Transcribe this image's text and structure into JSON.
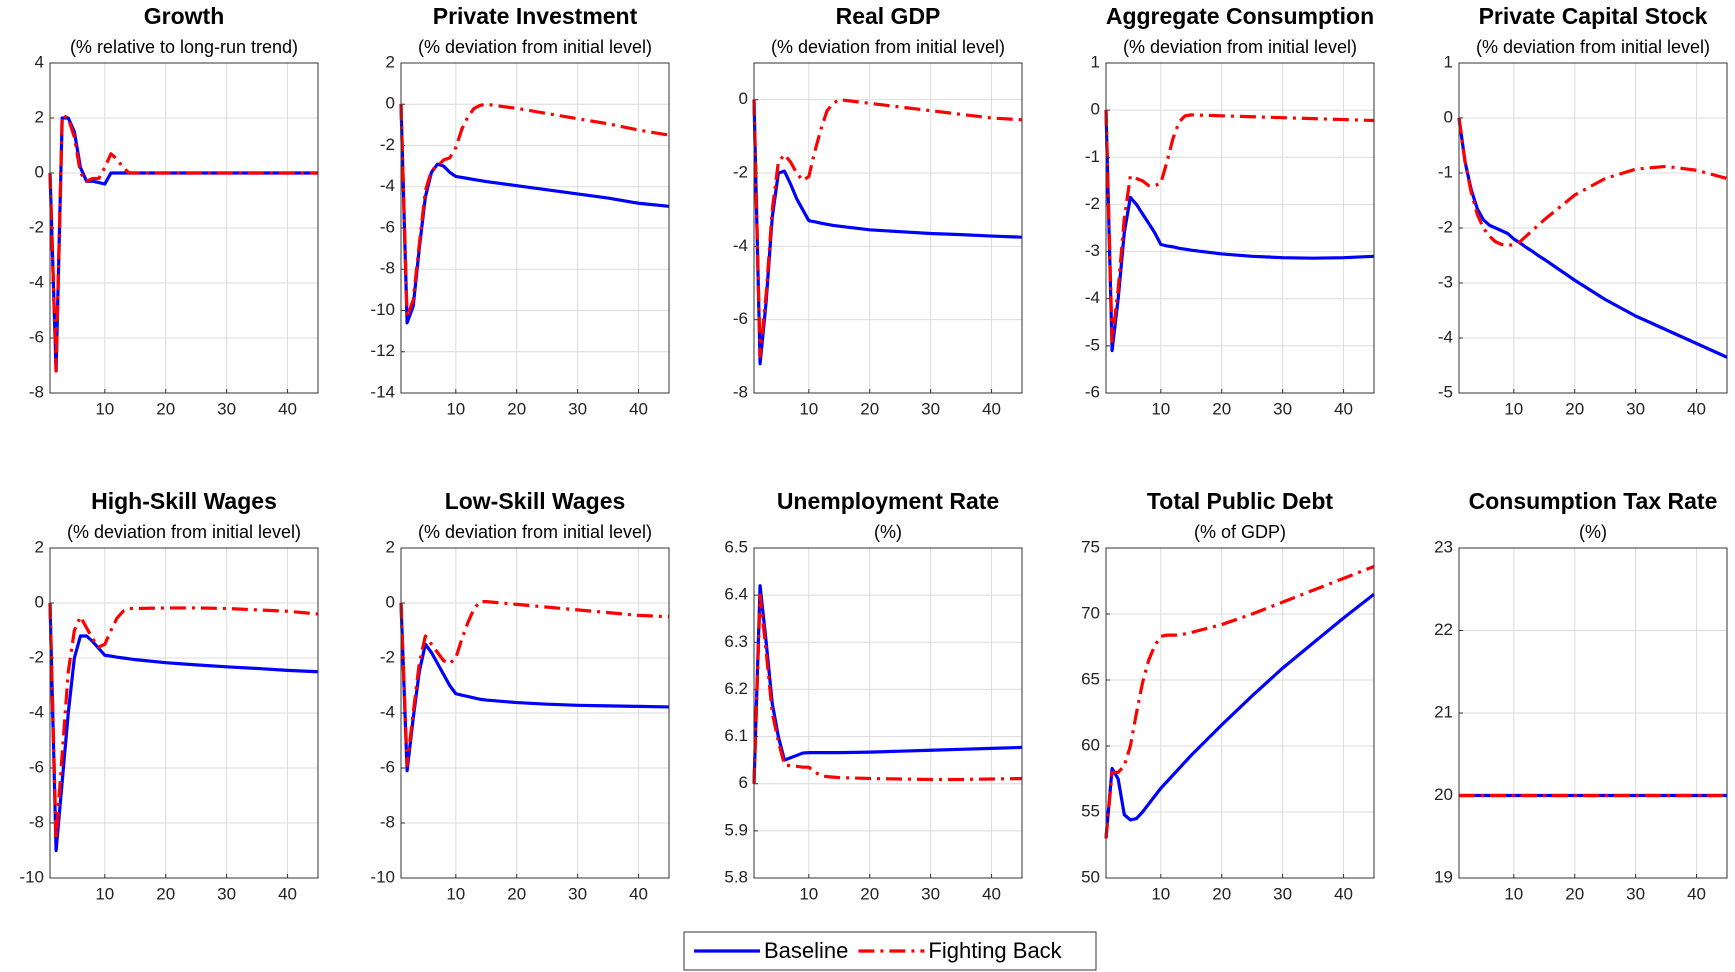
{
  "chart_data": [
    {
      "type": "line",
      "title": "Growth",
      "subtitle": "(% relative to long-run trend)",
      "x": [
        1,
        2,
        3,
        4,
        5,
        6,
        7,
        8,
        9,
        10,
        11,
        12,
        13,
        14,
        15,
        20,
        25,
        30,
        35,
        40,
        45
      ],
      "series": [
        {
          "name": "Baseline",
          "color": "#0000ff",
          "linestyle": "solid",
          "values": [
            0,
            -7.2,
            2.0,
            2.0,
            1.5,
            0.2,
            -0.3,
            -0.3,
            -0.35,
            -0.4,
            0,
            0,
            0,
            0,
            0,
            0,
            0,
            0,
            0,
            0,
            0
          ]
        },
        {
          "name": "Fighting Back",
          "color": "#ff0000",
          "linestyle": "dashdot",
          "values": [
            0,
            -7.2,
            2.1,
            2.0,
            1.3,
            0,
            -0.3,
            -0.2,
            -0.2,
            0.2,
            0.7,
            0.5,
            0.2,
            0,
            0,
            0,
            0,
            0,
            0,
            0,
            0
          ]
        }
      ],
      "xlim": [
        1,
        45
      ],
      "xticks": [
        10,
        20,
        30,
        40
      ],
      "ylim": [
        -8,
        4
      ],
      "yticks": [
        -8,
        -6,
        -4,
        -2,
        0,
        2,
        4
      ],
      "grid": true
    },
    {
      "type": "line",
      "title": "Private Investment",
      "subtitle": "(% deviation from initial level)",
      "x": [
        1,
        2,
        3,
        4,
        5,
        6,
        7,
        8,
        9,
        10,
        11,
        12,
        13,
        14,
        15,
        20,
        25,
        30,
        35,
        40,
        45
      ],
      "series": [
        {
          "name": "Baseline",
          "color": "#0000ff",
          "linestyle": "solid",
          "values": [
            0,
            -10.6,
            -9.8,
            -7,
            -4.5,
            -3.3,
            -2.9,
            -3.0,
            -3.3,
            -3.5,
            -3.55,
            -3.6,
            -3.65,
            -3.7,
            -3.75,
            -3.95,
            -4.15,
            -4.35,
            -4.55,
            -4.8,
            -4.95
          ]
        },
        {
          "name": "Fighting Back",
          "color": "#ff0000",
          "linestyle": "dashdot",
          "values": [
            0,
            -10.3,
            -9.5,
            -6.8,
            -4.2,
            -3.2,
            -3.0,
            -2.7,
            -2.6,
            -2.1,
            -1.2,
            -0.6,
            -0.2,
            -0.05,
            0,
            -0.2,
            -0.45,
            -0.7,
            -0.95,
            -1.25,
            -1.5
          ]
        }
      ],
      "xlim": [
        1,
        45
      ],
      "xticks": [
        10,
        20,
        30,
        40
      ],
      "ylim": [
        -14,
        2
      ],
      "yticks": [
        -14,
        -12,
        -10,
        -8,
        -6,
        -4,
        -2,
        0,
        2
      ],
      "grid": true
    },
    {
      "type": "line",
      "title": "Real GDP",
      "subtitle": "(% deviation from initial level)",
      "x": [
        1,
        2,
        3,
        4,
        5,
        6,
        7,
        8,
        9,
        10,
        11,
        12,
        13,
        14,
        15,
        20,
        25,
        30,
        35,
        40,
        45
      ],
      "series": [
        {
          "name": "Baseline",
          "color": "#0000ff",
          "linestyle": "solid",
          "values": [
            0,
            -7.2,
            -5.5,
            -3.2,
            -2.0,
            -1.95,
            -2.3,
            -2.7,
            -3.0,
            -3.3,
            -3.33,
            -3.37,
            -3.4,
            -3.43,
            -3.45,
            -3.55,
            -3.6,
            -3.65,
            -3.68,
            -3.72,
            -3.75
          ]
        },
        {
          "name": "Fighting Back",
          "color": "#ff0000",
          "linestyle": "dashdot",
          "values": [
            0,
            -7.0,
            -5.3,
            -3.0,
            -1.7,
            -1.5,
            -1.7,
            -2.0,
            -2.2,
            -2.1,
            -1.4,
            -0.8,
            -0.3,
            -0.1,
            0,
            -0.1,
            -0.2,
            -0.3,
            -0.4,
            -0.5,
            -0.55
          ]
        }
      ],
      "xlim": [
        1,
        45
      ],
      "xticks": [
        10,
        20,
        30,
        40
      ],
      "ylim": [
        -8,
        1
      ],
      "yticks": [
        -8,
        -6,
        -4,
        -2,
        0
      ],
      "grid": true
    },
    {
      "type": "line",
      "title": "Aggregate Consumption",
      "subtitle": "(% deviation from initial level)",
      "x": [
        1,
        2,
        3,
        4,
        5,
        6,
        7,
        8,
        9,
        10,
        11,
        12,
        13,
        14,
        15,
        20,
        25,
        30,
        35,
        40,
        45
      ],
      "series": [
        {
          "name": "Baseline",
          "color": "#0000ff",
          "linestyle": "solid",
          "values": [
            0,
            -5.1,
            -4.0,
            -2.6,
            -1.85,
            -2.0,
            -2.2,
            -2.4,
            -2.6,
            -2.85,
            -2.88,
            -2.9,
            -2.93,
            -2.95,
            -2.97,
            -3.05,
            -3.1,
            -3.13,
            -3.14,
            -3.13,
            -3.1
          ]
        },
        {
          "name": "Fighting Back",
          "color": "#ff0000",
          "linestyle": "dashdot",
          "values": [
            0,
            -4.9,
            -3.8,
            -2.3,
            -1.4,
            -1.45,
            -1.5,
            -1.6,
            -1.6,
            -1.55,
            -1.1,
            -0.6,
            -0.25,
            -0.12,
            -0.1,
            -0.12,
            -0.14,
            -0.16,
            -0.18,
            -0.2,
            -0.22
          ]
        }
      ],
      "xlim": [
        1,
        45
      ],
      "xticks": [
        10,
        20,
        30,
        40
      ],
      "ylim": [
        -6,
        1
      ],
      "yticks": [
        -6,
        -5,
        -4,
        -3,
        -2,
        -1,
        0,
        1
      ],
      "grid": true
    },
    {
      "type": "line",
      "title": "Private Capital Stock",
      "subtitle": "(% deviation from initial level)",
      "x": [
        1,
        2,
        3,
        4,
        5,
        6,
        7,
        8,
        9,
        10,
        11,
        12,
        13,
        14,
        15,
        20,
        25,
        30,
        35,
        40,
        45
      ],
      "series": [
        {
          "name": "Baseline",
          "color": "#0000ff",
          "linestyle": "solid",
          "values": [
            0,
            -0.8,
            -1.3,
            -1.65,
            -1.85,
            -1.95,
            -2.0,
            -2.05,
            -2.1,
            -2.2,
            -2.27,
            -2.35,
            -2.42,
            -2.5,
            -2.57,
            -2.95,
            -3.3,
            -3.6,
            -3.85,
            -4.1,
            -4.35
          ]
        },
        {
          "name": "Fighting Back",
          "color": "#ff0000",
          "linestyle": "dashdot",
          "values": [
            0,
            -0.8,
            -1.35,
            -1.75,
            -2.0,
            -2.15,
            -2.25,
            -2.3,
            -2.32,
            -2.3,
            -2.25,
            -2.15,
            -2.05,
            -1.95,
            -1.85,
            -1.4,
            -1.1,
            -0.93,
            -0.88,
            -0.95,
            -1.1
          ]
        }
      ],
      "xlim": [
        1,
        45
      ],
      "xticks": [
        10,
        20,
        30,
        40
      ],
      "ylim": [
        -5,
        1
      ],
      "yticks": [
        -5,
        -4,
        -3,
        -2,
        -1,
        0,
        1
      ],
      "grid": true
    },
    {
      "type": "line",
      "title": "High-Skill Wages",
      "subtitle": "(% deviation from initial level)",
      "x": [
        1,
        2,
        3,
        4,
        5,
        6,
        7,
        8,
        9,
        10,
        11,
        12,
        13,
        14,
        15,
        20,
        25,
        30,
        35,
        40,
        45
      ],
      "series": [
        {
          "name": "Baseline",
          "color": "#0000ff",
          "linestyle": "solid",
          "values": [
            0,
            -9.0,
            -6.5,
            -4.0,
            -2.0,
            -1.2,
            -1.2,
            -1.4,
            -1.65,
            -1.9,
            -1.93,
            -1.97,
            -2.0,
            -2.03,
            -2.06,
            -2.17,
            -2.25,
            -2.32,
            -2.38,
            -2.45,
            -2.5
          ]
        },
        {
          "name": "Fighting Back",
          "color": "#ff0000",
          "linestyle": "dashdot",
          "values": [
            0,
            -8.6,
            -5.5,
            -2.5,
            -1.0,
            -0.5,
            -0.9,
            -1.3,
            -1.6,
            -1.5,
            -1.0,
            -0.55,
            -0.3,
            -0.2,
            -0.2,
            -0.18,
            -0.18,
            -0.2,
            -0.25,
            -0.3,
            -0.4
          ]
        }
      ],
      "xlim": [
        1,
        45
      ],
      "xticks": [
        10,
        20,
        30,
        40
      ],
      "ylim": [
        -10,
        2
      ],
      "yticks": [
        -10,
        -8,
        -6,
        -4,
        -2,
        0,
        2
      ],
      "grid": true
    },
    {
      "type": "line",
      "title": "Low-Skill Wages",
      "subtitle": "(% deviation from initial level)",
      "x": [
        1,
        2,
        3,
        4,
        5,
        6,
        7,
        8,
        9,
        10,
        11,
        12,
        13,
        14,
        15,
        20,
        25,
        30,
        35,
        40,
        45
      ],
      "series": [
        {
          "name": "Baseline",
          "color": "#0000ff",
          "linestyle": "solid",
          "values": [
            0,
            -6.1,
            -4.2,
            -2.5,
            -1.5,
            -1.8,
            -2.2,
            -2.6,
            -3.0,
            -3.3,
            -3.35,
            -3.4,
            -3.45,
            -3.5,
            -3.53,
            -3.62,
            -3.68,
            -3.72,
            -3.74,
            -3.76,
            -3.78
          ]
        },
        {
          "name": "Fighting Back",
          "color": "#ff0000",
          "linestyle": "dashdot",
          "values": [
            0,
            -5.9,
            -4.0,
            -2.2,
            -1.2,
            -1.5,
            -1.8,
            -2.1,
            -2.2,
            -2.0,
            -1.3,
            -0.7,
            -0.2,
            0.05,
            0.05,
            -0.05,
            -0.15,
            -0.25,
            -0.35,
            -0.45,
            -0.5
          ]
        }
      ],
      "xlim": [
        1,
        45
      ],
      "xticks": [
        10,
        20,
        30,
        40
      ],
      "ylim": [
        -10,
        2
      ],
      "yticks": [
        -10,
        -8,
        -6,
        -4,
        -2,
        0,
        2
      ],
      "grid": true
    },
    {
      "type": "line",
      "title": "Unemployment Rate",
      "subtitle": "(%)",
      "x": [
        1,
        2,
        3,
        4,
        5,
        6,
        7,
        8,
        9,
        10,
        11,
        12,
        13,
        14,
        15,
        20,
        25,
        30,
        35,
        40,
        45
      ],
      "series": [
        {
          "name": "Baseline",
          "color": "#0000ff",
          "linestyle": "solid",
          "values": [
            6.0,
            6.42,
            6.3,
            6.17,
            6.1,
            6.05,
            6.055,
            6.06,
            6.065,
            6.066,
            6.066,
            6.066,
            6.066,
            6.066,
            6.066,
            6.067,
            6.069,
            6.071,
            6.073,
            6.075,
            6.077
          ]
        },
        {
          "name": "Fighting Back",
          "color": "#ff0000",
          "linestyle": "dashdot",
          "values": [
            6.0,
            6.4,
            6.28,
            6.15,
            6.09,
            6.04,
            6.038,
            6.037,
            6.035,
            6.035,
            6.025,
            6.017,
            6.015,
            6.014,
            6.013,
            6.011,
            6.01,
            6.009,
            6.009,
            6.01,
            6.011
          ]
        }
      ],
      "xlim": [
        1,
        45
      ],
      "xticks": [
        10,
        20,
        30,
        40
      ],
      "ylim": [
        5.8,
        6.5
      ],
      "yticks": [
        5.8,
        5.9,
        6,
        6.1,
        6.2,
        6.3,
        6.4,
        6.5
      ],
      "grid": true
    },
    {
      "type": "line",
      "title": "Total Public Debt",
      "subtitle": "(% of GDP)",
      "x": [
        1,
        2,
        3,
        4,
        5,
        6,
        7,
        8,
        9,
        10,
        11,
        12,
        13,
        14,
        15,
        20,
        25,
        30,
        35,
        40,
        45
      ],
      "series": [
        {
          "name": "Baseline",
          "color": "#0000ff",
          "linestyle": "solid",
          "values": [
            53,
            58.3,
            57.5,
            54.8,
            54.4,
            54.5,
            55.0,
            55.6,
            56.2,
            56.8,
            57.3,
            57.8,
            58.3,
            58.8,
            59.3,
            61.6,
            63.8,
            65.9,
            67.8,
            69.7,
            71.5
          ]
        },
        {
          "name": "Fighting Back",
          "color": "#ff0000",
          "linestyle": "dashdot",
          "values": [
            53,
            58,
            58,
            58.5,
            60,
            62.5,
            64.8,
            66.5,
            67.6,
            68.3,
            68.4,
            68.4,
            68.4,
            68.5,
            68.6,
            69.2,
            70,
            70.9,
            71.8,
            72.7,
            73.6
          ]
        }
      ],
      "xlim": [
        1,
        45
      ],
      "xticks": [
        10,
        20,
        30,
        40
      ],
      "ylim": [
        50,
        75
      ],
      "yticks": [
        50,
        55,
        60,
        65,
        70,
        75
      ],
      "grid": true
    },
    {
      "type": "line",
      "title": "Consumption Tax Rate",
      "subtitle": "(%)",
      "x": [
        1,
        2,
        3,
        4,
        5,
        6,
        7,
        8,
        9,
        10,
        11,
        12,
        13,
        14,
        15,
        20,
        25,
        30,
        35,
        40,
        45
      ],
      "series": [
        {
          "name": "Baseline",
          "color": "#0000ff",
          "linestyle": "solid",
          "values": [
            20,
            20,
            20,
            20,
            20,
            20,
            20,
            20,
            20,
            20,
            20,
            20,
            20,
            20,
            20,
            20,
            20,
            20,
            20,
            20,
            20
          ]
        },
        {
          "name": "Fighting Back",
          "color": "#ff0000",
          "linestyle": "dashdot",
          "values": [
            20,
            20,
            20,
            20,
            20,
            20,
            20,
            20,
            20,
            20,
            20,
            20,
            20,
            20,
            20,
            20,
            20,
            20,
            20,
            20,
            20
          ]
        }
      ],
      "xlim": [
        1,
        45
      ],
      "xticks": [
        10,
        20,
        30,
        40
      ],
      "ylim": [
        19,
        23
      ],
      "yticks": [
        19,
        20,
        21,
        22,
        23
      ],
      "grid": true
    }
  ]
}
